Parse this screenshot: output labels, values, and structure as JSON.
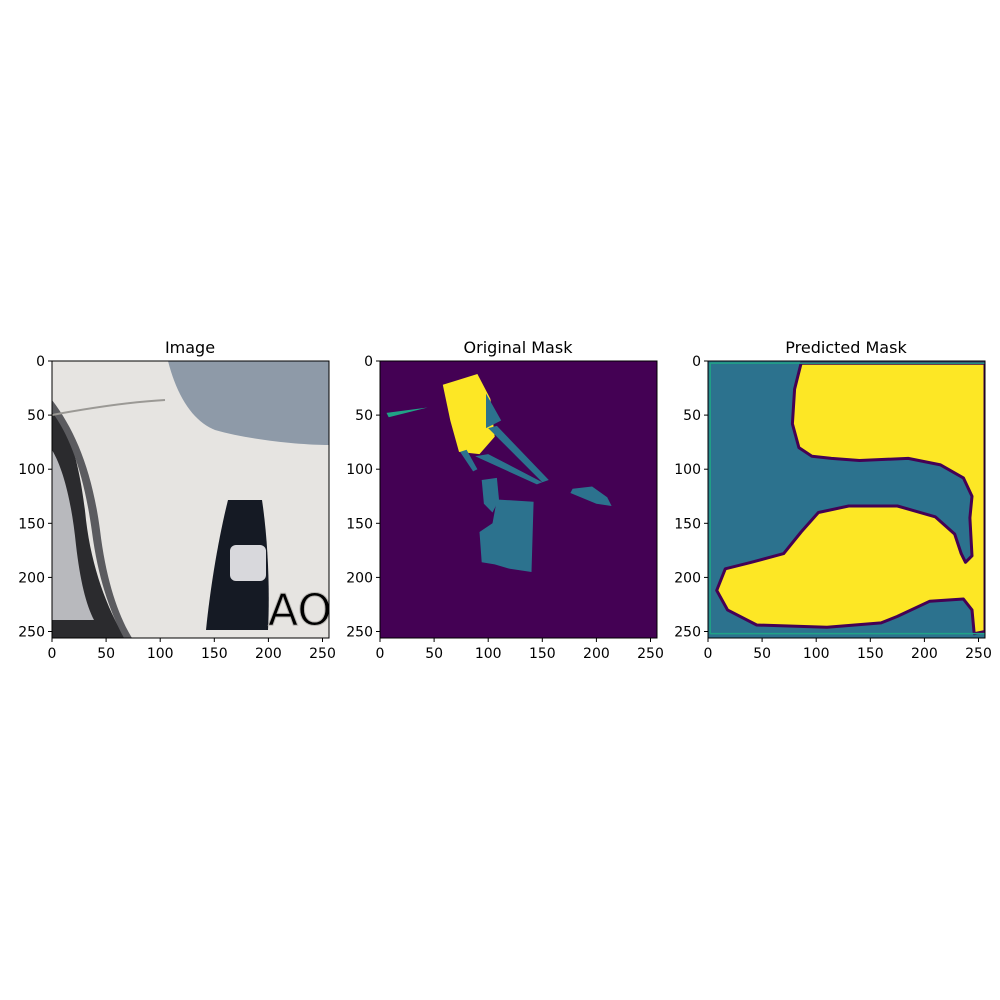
{
  "chart_data": [
    {
      "type": "heatmap",
      "title": "Image",
      "xlim": [
        0,
        256
      ],
      "ylim": [
        256,
        0
      ],
      "xticks": [
        0,
        50,
        100,
        150,
        200,
        250
      ],
      "yticks": [
        0,
        50,
        100,
        150,
        200,
        250
      ],
      "tick_labels_x": [
        "0",
        "50",
        "100",
        "150",
        "200",
        "250"
      ],
      "tick_labels_y": [
        "0",
        "50",
        "100",
        "150",
        "200",
        "250"
      ],
      "content": "photo",
      "watermark": "AOS",
      "colors": {
        "body": "#e6e4e1",
        "tire": "#2b2b2e",
        "rim": "#b8b9bd",
        "headlight": "#8e9aa8",
        "fog_vent": "#151a24",
        "fog_lamp": "#d8d8dc"
      }
    },
    {
      "type": "heatmap",
      "title": "Original Mask",
      "xlim": [
        0,
        256
      ],
      "ylim": [
        256,
        0
      ],
      "xticks": [
        0,
        50,
        100,
        150,
        200,
        250
      ],
      "yticks": [
        0,
        50,
        100,
        150,
        200,
        250
      ],
      "tick_labels_x": [
        "0",
        "50",
        "100",
        "150",
        "200",
        "250"
      ],
      "tick_labels_y": [
        "0",
        "50",
        "100",
        "150",
        "200",
        "250"
      ],
      "colormap": "viridis",
      "colors": {
        "class0": "#440154",
        "class1": "#2c728e",
        "class2": "#20a386",
        "class3": "#fde725"
      },
      "regions": [
        {
          "class": "class3",
          "points": [
            [
              58,
              22
            ],
            [
              90,
              12
            ],
            [
              102,
              35
            ],
            [
              106,
              70
            ],
            [
              92,
              86
            ],
            [
              73,
              84
            ],
            [
              65,
              55
            ]
          ]
        },
        {
          "class": "class1",
          "points": [
            [
              98,
              30
            ],
            [
              112,
              55
            ],
            [
              98,
              62
            ]
          ]
        },
        {
          "class": "class1",
          "points": [
            [
              100,
              62
            ],
            [
              108,
              60
            ],
            [
              156,
              110
            ],
            [
              150,
              112
            ]
          ]
        },
        {
          "class": "class1",
          "points": [
            [
              74,
              84
            ],
            [
              80,
              82
            ],
            [
              90,
              100
            ],
            [
              86,
              102
            ]
          ]
        },
        {
          "class": "class1",
          "points": [
            [
              88,
              88
            ],
            [
              100,
              86
            ],
            [
              150,
              112
            ],
            [
              145,
              114
            ]
          ]
        },
        {
          "class": "class1",
          "points": [
            [
              94,
              110
            ],
            [
              108,
              108
            ],
            [
              110,
              128
            ],
            [
              104,
              140
            ],
            [
              96,
              132
            ]
          ]
        },
        {
          "class": "class1",
          "points": [
            [
              108,
              128
            ],
            [
              142,
              130
            ],
            [
              140,
              195
            ],
            [
              120,
              192
            ],
            [
              106,
              188
            ],
            [
              94,
              186
            ],
            [
              92,
              158
            ],
            [
              104,
              150
            ]
          ]
        },
        {
          "class": "class1",
          "points": [
            [
              178,
              118
            ],
            [
              196,
              116
            ],
            [
              210,
              126
            ],
            [
              214,
              134
            ],
            [
              200,
              132
            ],
            [
              176,
              122
            ]
          ]
        },
        {
          "class": "class2",
          "points": [
            [
              6,
              48
            ],
            [
              44,
              43
            ],
            [
              8,
              52
            ]
          ]
        }
      ]
    },
    {
      "type": "heatmap",
      "title": "Predicted Mask",
      "xlim": [
        0,
        256
      ],
      "ylim": [
        256,
        0
      ],
      "xticks": [
        0,
        50,
        100,
        150,
        200,
        250
      ],
      "yticks": [
        0,
        50,
        100,
        150,
        200,
        250
      ],
      "tick_labels_x": [
        "0",
        "50",
        "100",
        "150",
        "200",
        "250"
      ],
      "tick_labels_y": [
        "0",
        "50",
        "100",
        "150",
        "200",
        "250"
      ],
      "colormap": "viridis",
      "colors": {
        "background": "#2c728e",
        "class0": "#440154",
        "class2": "#20a386",
        "class3": "#fde725"
      },
      "regions": [
        {
          "class": "class3",
          "points": [
            [
              86,
              2
            ],
            [
              256,
              2
            ],
            [
              256,
              250
            ],
            [
              246,
              252
            ],
            [
              244,
              230
            ],
            [
              236,
              220
            ],
            [
              205,
              222
            ],
            [
              175,
              236
            ],
            [
              160,
              242
            ],
            [
              110,
              246
            ],
            [
              45,
              244
            ],
            [
              18,
              230
            ],
            [
              8,
              212
            ],
            [
              16,
              192
            ],
            [
              40,
              186
            ],
            [
              70,
              178
            ],
            [
              86,
              158
            ],
            [
              102,
              140
            ],
            [
              130,
              134
            ],
            [
              175,
              134
            ],
            [
              210,
              144
            ],
            [
              228,
              160
            ],
            [
              234,
              178
            ],
            [
              238,
              186
            ],
            [
              244,
              180
            ],
            [
              242,
              145
            ],
            [
              244,
              125
            ],
            [
              236,
              108
            ],
            [
              215,
              96
            ],
            [
              185,
              90
            ],
            [
              140,
              92
            ],
            [
              114,
              90
            ],
            [
              96,
              88
            ],
            [
              84,
              80
            ],
            [
              78,
              58
            ],
            [
              80,
              26
            ]
          ]
        }
      ]
    }
  ]
}
